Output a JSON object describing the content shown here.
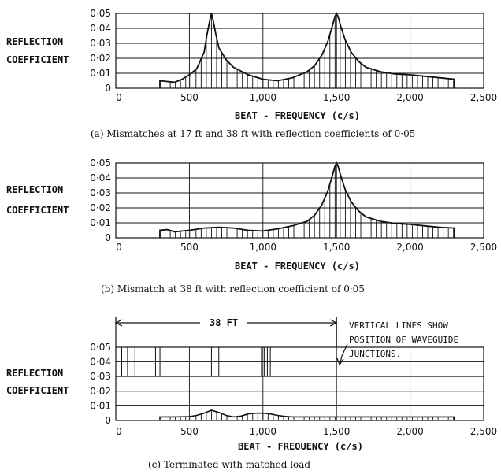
{
  "chart_data": [
    {
      "type": "line",
      "panel": "a",
      "ylabel": [
        "REFLECTION",
        "COEFFICIENT"
      ],
      "xlabel": "BEAT - FREQUENCY (c/s)",
      "x_ticks": [
        "0",
        "500",
        "1,000",
        "1,500",
        "2,000",
        "2,500"
      ],
      "y_ticks": [
        "0",
        "0·01",
        "0·02",
        "0·03",
        "0·04",
        "0·05"
      ],
      "xlim": [
        0,
        2500
      ],
      "ylim": [
        0,
        0.05
      ],
      "grid": true,
      "series": [
        {
          "x": [
            300,
            350,
            400,
            450,
            500,
            550,
            600,
            620,
            640,
            650,
            660,
            680,
            700,
            750,
            800,
            900,
            1000,
            1100,
            1200,
            1300,
            1350,
            1400,
            1440,
            1470,
            1490,
            1500,
            1510,
            1530,
            1560,
            1600,
            1650,
            1700,
            1800,
            1900,
            2000,
            2100,
            2200,
            2300
          ],
          "y": [
            0.005,
            0.0045,
            0.004,
            0.006,
            0.009,
            0.013,
            0.024,
            0.036,
            0.046,
            0.05,
            0.046,
            0.036,
            0.027,
            0.019,
            0.014,
            0.009,
            0.006,
            0.005,
            0.007,
            0.011,
            0.015,
            0.022,
            0.031,
            0.041,
            0.048,
            0.05,
            0.048,
            0.041,
            0.032,
            0.024,
            0.018,
            0.014,
            0.011,
            0.0095,
            0.009,
            0.008,
            0.007,
            0.006
          ]
        }
      ],
      "hatch": {
        "from": 300,
        "to": 2300,
        "step": 35
      },
      "caption": "(a) Mismatches at 17 ft and 38 ft with reflection coefficients of 0·05"
    },
    {
      "type": "line",
      "panel": "b",
      "ylabel": [
        "REFLECTION",
        "COEFFICIENT"
      ],
      "xlabel": "BEAT - FREQUENCY (c/s)",
      "x_ticks": [
        "0",
        "500",
        "1,000",
        "1,500",
        "2,000",
        "2,500"
      ],
      "y_ticks": [
        "0",
        "0·01",
        "0·02",
        "0·03",
        "0·04",
        "0·05"
      ],
      "xlim": [
        0,
        2500
      ],
      "ylim": [
        0,
        0.05
      ],
      "grid": true,
      "series": [
        {
          "x": [
            300,
            350,
            400,
            450,
            500,
            600,
            700,
            800,
            900,
            1000,
            1100,
            1200,
            1300,
            1350,
            1400,
            1440,
            1470,
            1490,
            1500,
            1510,
            1530,
            1560,
            1600,
            1650,
            1700,
            1800,
            1900,
            2000,
            2100,
            2200,
            2300
          ],
          "y": [
            0.005,
            0.0055,
            0.004,
            0.0045,
            0.005,
            0.0065,
            0.007,
            0.0065,
            0.005,
            0.0045,
            0.006,
            0.008,
            0.011,
            0.015,
            0.022,
            0.031,
            0.041,
            0.048,
            0.05,
            0.048,
            0.041,
            0.032,
            0.024,
            0.018,
            0.014,
            0.011,
            0.0095,
            0.009,
            0.008,
            0.007,
            0.0065
          ]
        }
      ],
      "hatch": {
        "from": 300,
        "to": 2300,
        "step": 35
      },
      "caption": "(b) Mismatch at 38 ft with reflection coefficient of 0·05"
    },
    {
      "type": "line",
      "panel": "c",
      "ylabel": [
        "REFLECTION",
        "COEFFICIENT"
      ],
      "xlabel": "BEAT - FREQUENCY (c/s)",
      "x_ticks": [
        "0",
        "500",
        "1,000",
        "1,500",
        "2,000",
        "2,500"
      ],
      "y_ticks": [
        "0",
        "0·01",
        "0·02",
        "0·03",
        "0·04",
        "0·05"
      ],
      "xlim": [
        0,
        2500
      ],
      "ylim": [
        0,
        0.05
      ],
      "grid": true,
      "series": [
        {
          "x": [
            300,
            400,
            500,
            550,
            600,
            650,
            700,
            750,
            800,
            850,
            900,
            950,
            1000,
            1050,
            1100,
            1150,
            1200,
            1300,
            1400,
            1500,
            1700,
            1900,
            2100,
            2300
          ],
          "y": [
            0.0025,
            0.0025,
            0.0027,
            0.0035,
            0.005,
            0.007,
            0.0055,
            0.0035,
            0.0025,
            0.003,
            0.0045,
            0.005,
            0.005,
            0.0045,
            0.0035,
            0.0028,
            0.0025,
            0.0025,
            0.0025,
            0.0025,
            0.0025,
            0.0025,
            0.0025,
            0.0025
          ]
        }
      ],
      "hatch": {
        "from": 300,
        "to": 2300,
        "step": 35
      },
      "junctions": [
        0,
        40,
        80,
        130,
        270,
        300,
        650,
        700,
        990,
        1010,
        1030,
        1050
      ],
      "junction_band": [
        0.03,
        0.05
      ],
      "span_label": "38 FT",
      "span": [
        0,
        1500
      ],
      "note": [
        "VERTICAL LINES SHOW",
        "POSITION OF WAVEGUIDE",
        "JUNCTIONS."
      ],
      "caption": "(c) Terminated with matched load"
    }
  ]
}
